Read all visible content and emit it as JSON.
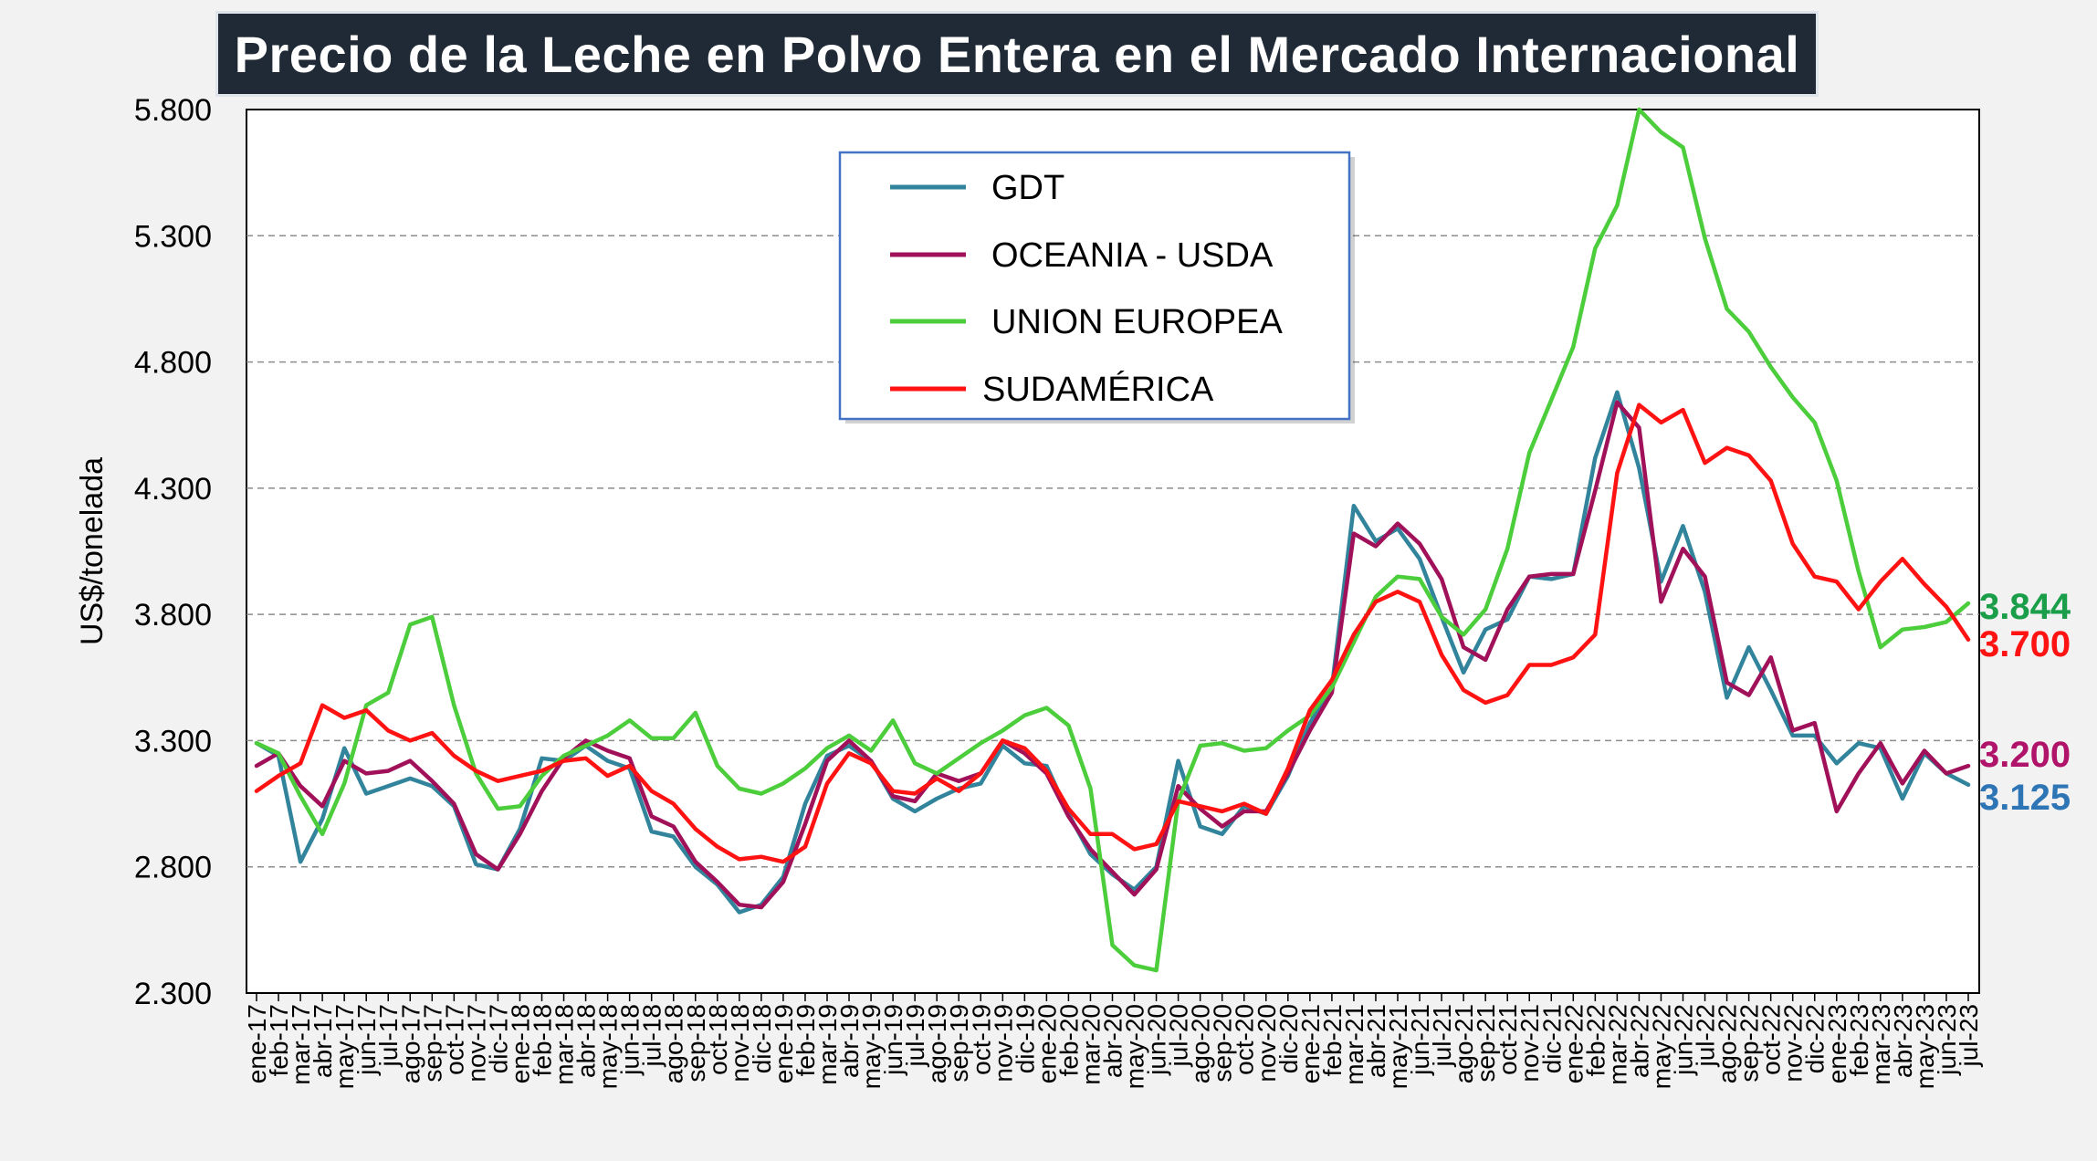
{
  "chart_data": {
    "type": "line",
    "title": "Precio de la Leche en Polvo Entera en el Mercado Internacional",
    "ylabel": "US$/tonelada",
    "xlabel": "",
    "ylim": [
      2300,
      5800
    ],
    "yticks": [
      2300,
      2800,
      3300,
      3800,
      4300,
      4800,
      5300,
      5800
    ],
    "ytick_labels": [
      "2.300",
      "2.800",
      "3.300",
      "3.800",
      "4.300",
      "4.800",
      "5.300",
      "5.800"
    ],
    "grid": "horizontal dashed",
    "legend_position": "top-center",
    "x": [
      "ene-17",
      "feb-17",
      "mar-17",
      "abr-17",
      "may-17",
      "jun-17",
      "jul-17",
      "ago-17",
      "sep-17",
      "oct-17",
      "nov-17",
      "dic-17",
      "ene-18",
      "feb-18",
      "mar-18",
      "abr-18",
      "may-18",
      "jun-18",
      "jul-18",
      "ago-18",
      "sep-18",
      "oct-18",
      "nov-18",
      "dic-18",
      "ene-19",
      "feb-19",
      "mar-19",
      "abr-19",
      "may-19",
      "jun-19",
      "jul-19",
      "ago-19",
      "sep-19",
      "oct-19",
      "nov-19",
      "dic-19",
      "ene-20",
      "feb-20",
      "mar-20",
      "abr-20",
      "may-20",
      "jun-20",
      "jul-20",
      "ago-20",
      "sep-20",
      "oct-20",
      "nov-20",
      "dic-20",
      "ene-21",
      "feb-21",
      "mar-21",
      "abr-21",
      "may-21",
      "jun-21",
      "jul-21",
      "ago-21",
      "sep-21",
      "oct-21",
      "nov-21",
      "dic-21",
      "ene-22",
      "feb-22",
      "mar-22",
      "abr-22",
      "may-22",
      "jun-22",
      "jul-22",
      "ago-22",
      "sep-22",
      "oct-22",
      "nov-22",
      "dic-22",
      "ene-23",
      "feb-23",
      "mar-23",
      "abr-23",
      "may-23",
      "jun-23",
      "jul-23"
    ],
    "series": [
      {
        "name": "GDT",
        "color": "#31849b",
        "values": [
          3290,
          3240,
          2820,
          2990,
          3270,
          3090,
          3120,
          3150,
          3120,
          3040,
          2810,
          2790,
          2950,
          3230,
          3220,
          3280,
          3220,
          3190,
          2940,
          2920,
          2800,
          2730,
          2620,
          2650,
          2760,
          3050,
          3240,
          3280,
          3220,
          3070,
          3020,
          3070,
          3110,
          3130,
          3280,
          3210,
          3200,
          3010,
          2850,
          2770,
          2710,
          2800,
          3220,
          2960,
          2930,
          3040,
          3010,
          3160,
          3370,
          3510,
          4230,
          4090,
          4140,
          4020,
          3790,
          3570,
          3740,
          3780,
          3950,
          3940,
          3960,
          4420,
          4680,
          4380,
          3930,
          4150,
          3890,
          3470,
          3670,
          3500,
          3320,
          3320,
          3210,
          3290,
          3270,
          3070,
          3250,
          3170,
          3125
        ]
      },
      {
        "name": "OCEANIA - USDA",
        "color": "#a0115a",
        "values": [
          3200,
          3250,
          3120,
          3040,
          3220,
          3170,
          3180,
          3220,
          3140,
          3050,
          2850,
          2790,
          2930,
          3100,
          3230,
          3300,
          3260,
          3230,
          3000,
          2960,
          2820,
          2740,
          2650,
          2640,
          2740,
          2970,
          3220,
          3300,
          3220,
          3080,
          3060,
          3170,
          3140,
          3170,
          3300,
          3250,
          3170,
          3000,
          2870,
          2780,
          2690,
          2790,
          3120,
          3030,
          2960,
          3020,
          3020,
          3170,
          3340,
          3490,
          4120,
          4070,
          4160,
          4080,
          3940,
          3670,
          3620,
          3820,
          3950,
          3960,
          3960,
          4290,
          4640,
          4540,
          3850,
          4060,
          3950,
          3530,
          3480,
          3630,
          3340,
          3370,
          3020,
          3170,
          3290,
          3130,
          3260,
          3170,
          3200
        ]
      },
      {
        "name": "UNION EUROPEA",
        "color": "#4ccd3b",
        "values": [
          3290,
          3250,
          3080,
          2930,
          3130,
          3440,
          3490,
          3760,
          3790,
          3440,
          3170,
          3030,
          3040,
          3160,
          3240,
          3280,
          3320,
          3380,
          3310,
          3310,
          3410,
          3200,
          3110,
          3090,
          3130,
          3190,
          3270,
          3320,
          3260,
          3380,
          3210,
          3170,
          3230,
          3290,
          3340,
          3400,
          3430,
          3360,
          3110,
          2490,
          2410,
          2390,
          3060,
          3280,
          3290,
          3260,
          3270,
          3340,
          3400,
          3510,
          3690,
          3870,
          3950,
          3940,
          3790,
          3720,
          3820,
          4060,
          4440,
          4650,
          4860,
          5250,
          5420,
          5800,
          5710,
          5650,
          5290,
          5010,
          4920,
          4780,
          4660,
          4560,
          4330,
          3970,
          3670,
          3740,
          3750,
          3770,
          3844
        ]
      },
      {
        "name": "SUDAMÉRICA",
        "color": "#ff1212",
        "values": [
          3100,
          3160,
          3210,
          3440,
          3390,
          3420,
          3340,
          3300,
          3330,
          3240,
          3180,
          3140,
          3160,
          3180,
          3220,
          3230,
          3160,
          3200,
          3100,
          3050,
          2950,
          2880,
          2830,
          2840,
          2820,
          2880,
          3130,
          3250,
          3210,
          3100,
          3090,
          3150,
          3100,
          3170,
          3300,
          3270,
          3180,
          3030,
          2930,
          2930,
          2870,
          2890,
          3060,
          3040,
          3020,
          3050,
          3010,
          3190,
          3420,
          3540,
          3720,
          3850,
          3890,
          3850,
          3640,
          3500,
          3450,
          3480,
          3600,
          3600,
          3630,
          3720,
          4360,
          4630,
          4560,
          4610,
          4400,
          4460,
          4430,
          4330,
          4080,
          3950,
          3930,
          3820,
          3930,
          4020,
          3920,
          3830,
          3700
        ]
      }
    ],
    "end_labels": [
      {
        "text": "3.844",
        "color": "#1a9e4a",
        "value": 3844
      },
      {
        "text": "3.700",
        "color": "#ff1212",
        "value": 3700
      },
      {
        "text": "3.200",
        "color": "#b0136a",
        "value": 3200
      },
      {
        "text": "3.125",
        "color": "#2e75b6",
        "value": 3125
      }
    ]
  }
}
